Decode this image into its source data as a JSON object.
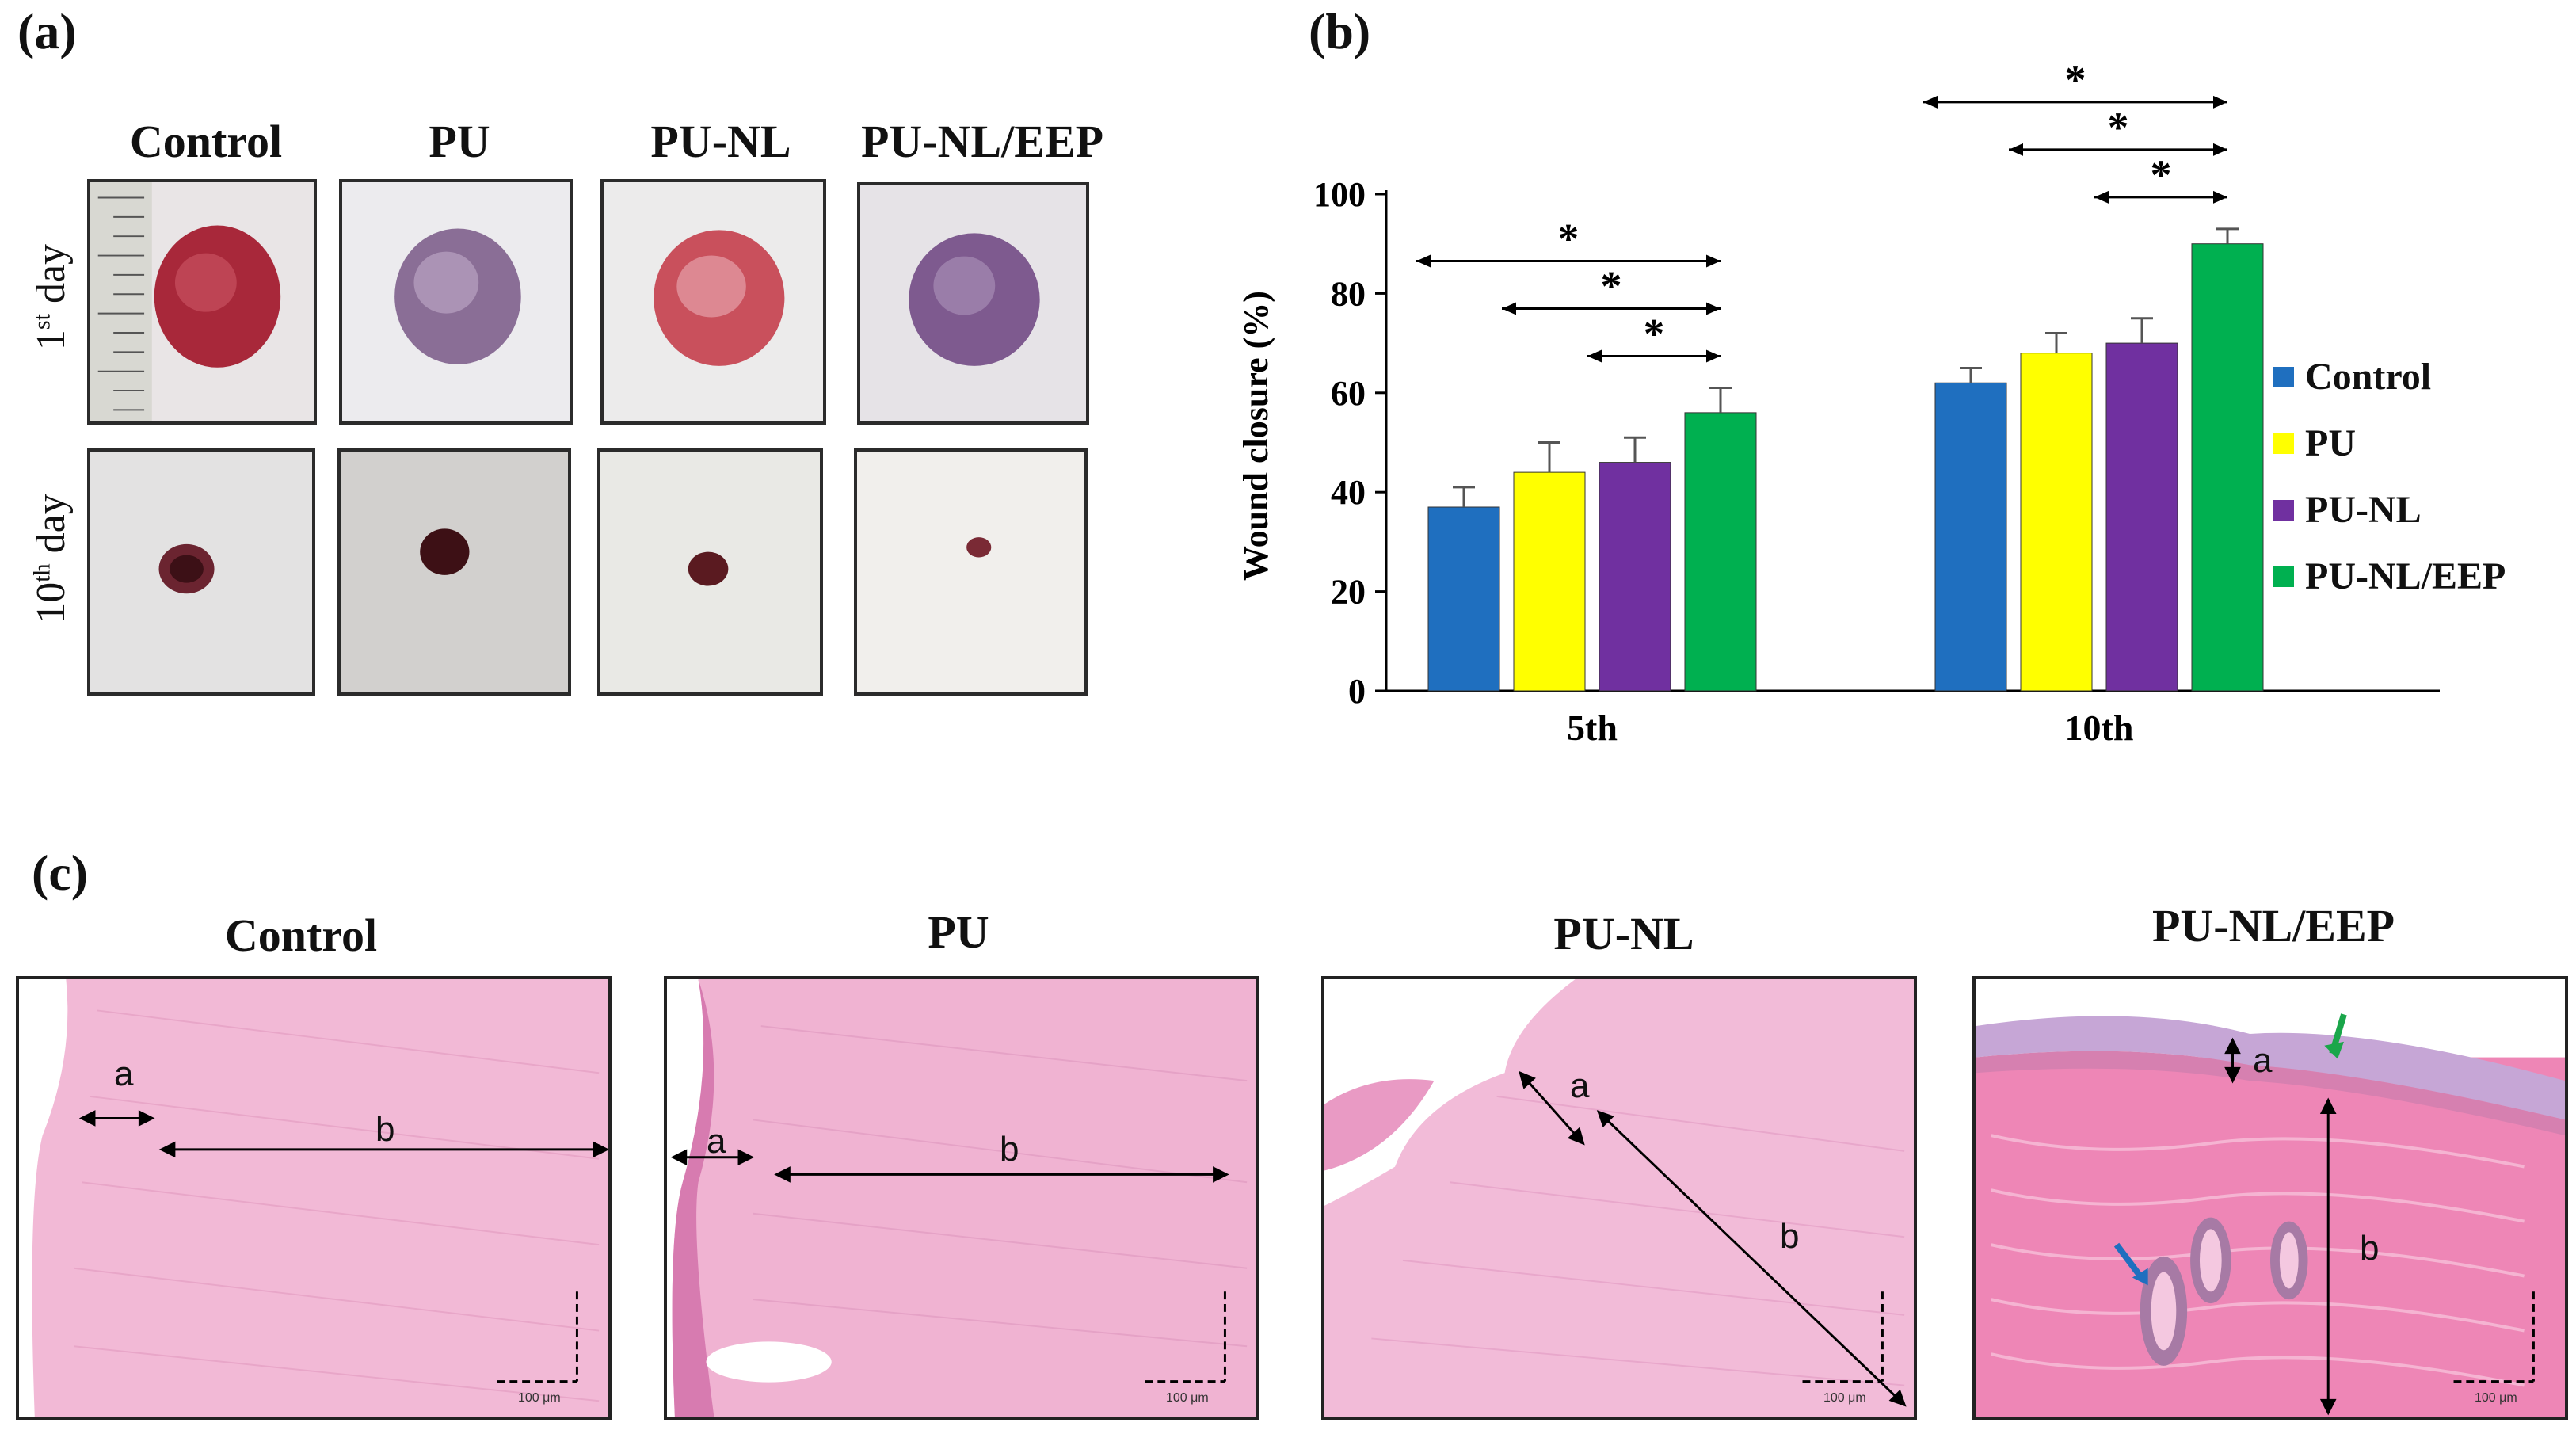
{
  "panels": {
    "a": "(a)",
    "b": "(b)",
    "c": "(c)"
  },
  "photos": {
    "columns": [
      "Control",
      "PU",
      "PU-NL",
      "PU-NL/EEP"
    ],
    "row1": {
      "num": "1",
      "sup": "st",
      "word": "day"
    },
    "row2": {
      "num": "10",
      "sup": "th",
      "word": "day"
    }
  },
  "histology": {
    "titles": [
      "Control",
      "PU",
      "PU-NL",
      "PU-NL/EEP"
    ],
    "label_a": "a",
    "label_b": "b",
    "scale_text": "100 μm"
  },
  "chart_data": {
    "type": "bar",
    "ylabel": "Wound closure (%)",
    "xlabel": "",
    "ylim": [
      0,
      100
    ],
    "yticks": [
      0,
      20,
      40,
      60,
      80,
      100
    ],
    "categories": [
      "5th",
      "10th"
    ],
    "series": [
      {
        "name": "Control",
        "color": "#1f6fbf",
        "values": [
          37,
          62
        ],
        "errors": [
          4,
          3
        ]
      },
      {
        "name": "PU",
        "color": "#ffff00",
        "values": [
          44,
          68
        ],
        "errors": [
          6,
          4
        ]
      },
      {
        "name": "PU-NL",
        "color": "#7030a0",
        "values": [
          46,
          70
        ],
        "errors": [
          5,
          5
        ]
      },
      {
        "name": "PU-NL/EEP",
        "color": "#00b050",
        "values": [
          56,
          90
        ],
        "errors": [
          5,
          3
        ]
      }
    ],
    "significance_marker": "*",
    "grid": false,
    "legend_position": "right"
  }
}
